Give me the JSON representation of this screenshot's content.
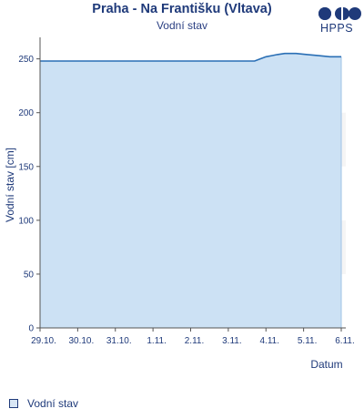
{
  "header": {
    "title": "Praha - Na Františku (Vltava)",
    "subtitle": "Vodní stav",
    "logo_text": "HPPS"
  },
  "colors": {
    "area_fill": "#c9dff3",
    "line": "#2a6fb5",
    "band": "#000000",
    "text": "#1f3a7a"
  },
  "chart_data": {
    "type": "area",
    "title": "Praha - Na Františku (Vltava)",
    "subtitle": "Vodní stav",
    "xlabel": "Datum",
    "ylabel": "Vodní stav [cm]",
    "x_ticks": [
      "29.10.",
      "30.10.",
      "31.10.",
      "1.11.",
      "2.11.",
      "3.11.",
      "4.11.",
      "5.11.",
      "6.11."
    ],
    "xlim": [
      "29.10.",
      "6.11."
    ],
    "ylim": [
      0,
      270
    ],
    "y_ticks": [
      0,
      50,
      100,
      150,
      200,
      250
    ],
    "grid": "alternating horizontal bands",
    "legend_position": "bottom-left",
    "series": [
      {
        "name": "Vodní stav",
        "x": [
          0,
          5.7,
          5.85,
          6.0,
          6.15,
          6.3,
          6.5,
          6.8,
          7.1,
          7.4,
          7.7,
          8.0
        ],
        "values": [
          248,
          248,
          250,
          252,
          253,
          254,
          255,
          255,
          254,
          253,
          252,
          252
        ]
      }
    ]
  }
}
